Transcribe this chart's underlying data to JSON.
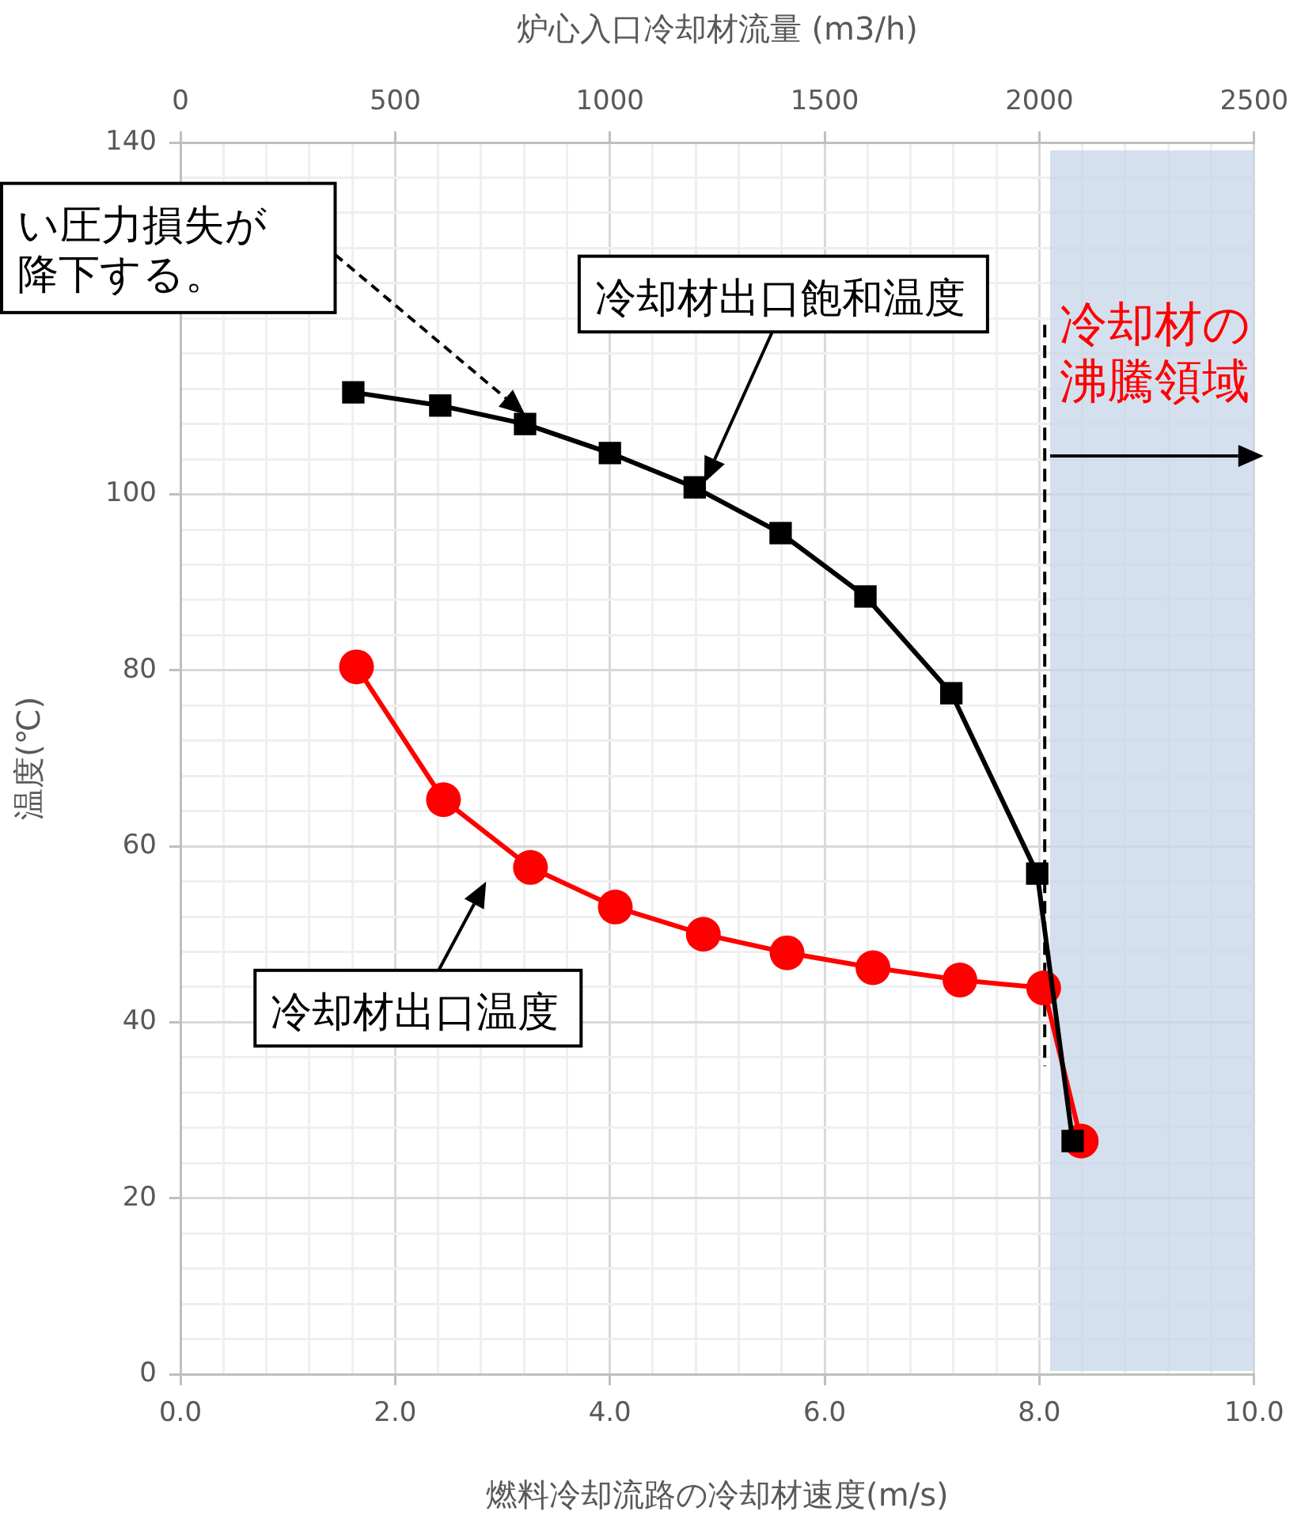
{
  "chart_data": {
    "type": "line",
    "xlabel": "燃料冷却流路の冷却材速度(m/s)",
    "ylabel": "温度(℃)",
    "x2label": "炉心入口冷却材流量 (m3/h)",
    "xlim": [
      0,
      10
    ],
    "ylim": [
      0,
      140
    ],
    "x2lim": [
      0,
      2500
    ],
    "xticks": [
      {
        "value": 0,
        "label": "0.0"
      },
      {
        "value": 0.4,
        "label": null
      },
      {
        "value": 0.8,
        "label": null
      },
      {
        "value": 1.2,
        "label": null
      },
      {
        "value": 1.6,
        "label": null
      },
      {
        "value": 2,
        "label": "2.0"
      },
      {
        "value": 2.4,
        "label": null
      },
      {
        "value": 2.8,
        "label": null
      },
      {
        "value": 3.2,
        "label": null
      },
      {
        "value": 3.6,
        "label": null
      },
      {
        "value": 4,
        "label": "4.0"
      },
      {
        "value": 4.4,
        "label": null
      },
      {
        "value": 4.8,
        "label": null
      },
      {
        "value": 5.2,
        "label": null
      },
      {
        "value": 5.6,
        "label": null
      },
      {
        "value": 6,
        "label": "6.0"
      },
      {
        "value": 6.4,
        "label": null
      },
      {
        "value": 6.8,
        "label": null
      },
      {
        "value": 7.2,
        "label": null
      },
      {
        "value": 7.6,
        "label": null
      },
      {
        "value": 8,
        "label": "8.0"
      },
      {
        "value": 8.4,
        "label": null
      },
      {
        "value": 8.8,
        "label": null
      },
      {
        "value": 9.2,
        "label": null
      },
      {
        "value": 9.6,
        "label": null
      },
      {
        "value": 10,
        "label": "10.0"
      }
    ],
    "yticks": [
      0,
      {
        "value": 4,
        "label": null
      },
      {
        "value": 8,
        "label": null
      },
      {
        "value": 12,
        "label": null
      },
      {
        "value": 16,
        "label": null
      },
      20,
      {
        "value": 24,
        "label": null
      },
      {
        "value": 28,
        "label": null
      },
      {
        "value": 32,
        "label": null
      },
      {
        "value": 36,
        "label": null
      },
      40,
      {
        "value": 44,
        "label": null
      },
      {
        "value": 48,
        "label": null
      },
      {
        "value": 52,
        "label": null
      },
      {
        "value": 56,
        "label": null
      },
      60,
      {
        "value": 64,
        "label": null
      },
      {
        "value": 68,
        "label": null
      },
      {
        "value": 72,
        "label": null
      },
      {
        "value": 76,
        "label": null
      },
      80,
      {
        "value": 84,
        "label": null
      },
      {
        "value": 88,
        "label": null
      },
      {
        "value": 92,
        "label": null
      },
      {
        "value": 96,
        "label": null
      },
      100,
      {
        "value": 104,
        "label": null
      },
      {
        "value": 108,
        "label": null
      },
      {
        "value": 112,
        "label": null
      },
      {
        "value": 116,
        "label": null
      },
      {
        "value": 120,
        "label": null
      },
      {
        "value": 124,
        "label": null
      },
      {
        "value": 128,
        "label": null
      },
      {
        "value": 132,
        "label": null
      },
      {
        "value": 136,
        "label": null
      },
      140
    ],
    "x2ticks": [
      0,
      500,
      1000,
      1500,
      2000,
      2500
    ],
    "grid": true,
    "legend": false,
    "line_style": "solid",
    "series": [
      {
        "color": "#000000",
        "marker": "square",
        "x": [
          1.61,
          2.42,
          3.21,
          4.0,
          4.79,
          5.59,
          6.38,
          7.18,
          7.98,
          8.31
        ],
        "values": [
          111.6,
          110.1,
          108.0,
          104.7,
          100.8,
          95.6,
          88.4,
          77.4,
          56.9,
          26.5
        ]
      },
      {
        "color": "#ff0000",
        "marker": "circle",
        "x": [
          1.64,
          2.45,
          3.26,
          4.05,
          4.87,
          5.65,
          6.45,
          7.26,
          8.04,
          8.39
        ],
        "values": [
          80.4,
          65.3,
          57.6,
          53.1,
          50.0,
          47.9,
          46.2,
          44.8,
          43.9,
          26.5
        ]
      }
    ],
    "bands": [
      {
        "axis": "x",
        "from": 8.1,
        "to": 10,
        "label": "冷却材の沸騰領域",
        "color": "#c5d5e8"
      }
    ],
    "ref_lines": [
      {
        "axis": "x",
        "value": 8.05,
        "line_style": "dashed",
        "color": "#000000"
      }
    ],
    "annotations": [
      "い圧力損失が降下する。",
      "冷却材出口飽和温度",
      "冷却材出口温度"
    ]
  }
}
